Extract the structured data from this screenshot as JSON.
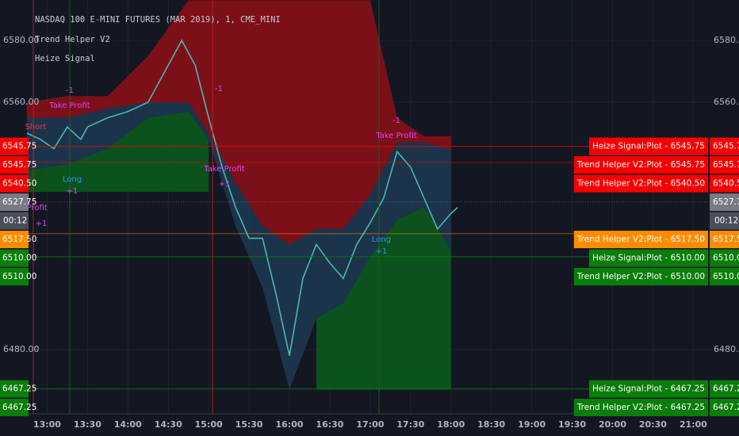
{
  "chart_data": {
    "type": "line",
    "title": "NASDAQ 100 E-MINI FUTURES (MAR 2019), 1, CME_MINI",
    "indicators": [
      "Trend Helper V2",
      "Heize Signal"
    ],
    "xlim": [
      "12:25",
      "21:11"
    ],
    "xticks": [
      "13:00",
      "13:30",
      "14:00",
      "14:30",
      "15:00",
      "15:30",
      "16:00",
      "16:30",
      "17:00",
      "17:30",
      "18:00",
      "18:30",
      "19:00",
      "19:30",
      "20:00",
      "20:30",
      "21:00"
    ],
    "ylim": [
      6459.7,
      6593.1
    ],
    "yticks": [
      {
        "value": 6580,
        "label": "6580.00"
      },
      {
        "value": 6560,
        "label": "6560.00"
      },
      {
        "value": 6480,
        "label": "6480.00"
      }
    ],
    "grid": true,
    "price": {
      "color": "#4db6ac",
      "x": [
        "12:45",
        "12:55",
        "13:05",
        "13:15",
        "13:25",
        "13:30",
        "13:45",
        "14:00",
        "14:15",
        "14:30",
        "14:40",
        "14:50",
        "15:00",
        "15:10",
        "15:20",
        "15:30",
        "15:40",
        "15:50",
        "16:00",
        "16:10",
        "16:20",
        "16:30",
        "16:40",
        "16:50",
        "17:00",
        "17:10",
        "17:20",
        "17:30",
        "17:40",
        "17:50",
        "18:00",
        "18:05"
      ],
      "values": [
        6550,
        6548,
        6545,
        6552,
        6548,
        6552,
        6555,
        6557,
        6560,
        6572,
        6580,
        6572,
        6555,
        6539,
        6526,
        6516,
        6516,
        6498,
        6478,
        6503,
        6514,
        6508,
        6503,
        6514,
        6521,
        6529,
        6544,
        6539,
        6529,
        6519,
        6524,
        6526
      ]
    },
    "bands": [
      {
        "color": "#8e0f18",
        "x": [
          "12:45",
          "13:15",
          "13:45",
          "14:15",
          "14:45",
          "15:00",
          "15:20",
          "15:40",
          "16:00",
          "16:20",
          "16:40",
          "17:00",
          "17:20",
          "17:40",
          "18:00"
        ],
        "high": [
          6560,
          6562,
          6562,
          6575,
          6593,
          6593,
          6593,
          6593,
          6593,
          6593,
          6593,
          6593,
          6555,
          6549,
          6549
        ],
        "low": [
          6555,
          6555,
          6558,
          6560,
          6560,
          6550,
          6534,
          6520,
          6514,
          6519,
          6519,
          6530,
          6547,
          6547,
          6545
        ]
      },
      {
        "color": "#1e3a52",
        "x": [
          "12:45",
          "13:15",
          "13:45",
          "14:15",
          "14:45",
          "15:00",
          "15:20",
          "15:40",
          "16:00",
          "16:20",
          "16:40",
          "17:00",
          "17:20",
          "17:40",
          "18:00"
        ],
        "high": [
          6555,
          6555,
          6558,
          6560,
          6560,
          6550,
          6534,
          6520,
          6514,
          6519,
          6519,
          6530,
          6547,
          6547,
          6545
        ],
        "low": [
          6538,
          6540,
          6545,
          6555,
          6557,
          6548,
          6520,
          6500,
          6467,
          6490,
          6495,
          6510,
          6522,
          6526,
          6512
        ]
      },
      {
        "color": "#0b5d1e",
        "x": [
          "12:45",
          "13:15",
          "13:45",
          "14:15",
          "14:45",
          "15:00",
          "15:20",
          "15:40",
          "16:00",
          "16:20",
          "16:40",
          "17:00",
          "17:20",
          "17:40",
          "18:00"
        ],
        "high": [
          6538,
          6540,
          6545,
          6555,
          6557,
          6548,
          null,
          null,
          null,
          6490,
          6495,
          6510,
          6522,
          6526,
          6512
        ],
        "low": [
          6531,
          6531,
          6531,
          6531,
          6531,
          6531,
          null,
          null,
          null,
          6467,
          6467,
          6467,
          6467,
          6467,
          6467
        ]
      }
    ],
    "tags": [
      {
        "text": "Heize Signal:Plot - 6545.75",
        "price": {
          "value": 6545.75,
          "label": "6545.75"
        },
        "color": "#f50000"
      },
      {
        "text": "Trend Helper V2:Plot - 6545.75",
        "price": {
          "value": 6545.75,
          "label": "6545.75"
        },
        "color": "#f50000"
      },
      {
        "text": "Trend Helper V2:Plot - 6540.50",
        "price": {
          "value": 6540.5,
          "label": "6540.50"
        },
        "color": "#f50000"
      },
      {
        "text": "Trend Helper V2:Plot - 6517.50",
        "price": {
          "value": 6517.5,
          "label": "6517.50"
        },
        "color": "#ff8c00"
      },
      {
        "text": "Heize Signal:Plot - 6510.00",
        "price": {
          "value": 6510,
          "label": "6510.00"
        },
        "color": "#0a7d0a"
      },
      {
        "text": "Trend Helper V2:Plot - 6510.00",
        "price": {
          "value": 6510,
          "label": "6510.00"
        },
        "color": "#0a7d0a"
      },
      {
        "text": "Heize Signal:Plot - 6467.25",
        "price": {
          "value": 6467.25,
          "label": "6467.25"
        },
        "color": "#0a7d0a"
      },
      {
        "text": "Trend Helper V2:Plot - 6467.25",
        "price": {
          "value": 6467.25,
          "label": "6467.25"
        },
        "color": "#0a7d0a"
      }
    ],
    "last_price": {
      "value": 6527.75,
      "label": "6527.75",
      "color": "#787b86"
    },
    "countdown": "00:12",
    "annotations": [
      {
        "text": "Short",
        "color": "#f23645"
      },
      {
        "text": "-1",
        "color": "#e040fb"
      },
      {
        "text": "Take Profit",
        "color": "#e040fb"
      },
      {
        "text": "Long",
        "color": "#2196f3"
      },
      {
        "text": "+1",
        "color": "#e040fb"
      },
      {
        "text": "Take Profit",
        "color": "#e040fb"
      },
      {
        "text": "+1",
        "color": "#e040fb"
      },
      {
        "text": "-1",
        "color": "#e040fb"
      },
      {
        "text": "Take Profit",
        "color": "#e040fb"
      },
      {
        "text": "+1",
        "color": "#e040fb"
      },
      {
        "text": "-1",
        "color": "#e040fb"
      },
      {
        "text": "Take Profit",
        "color": "#e040fb"
      },
      {
        "text": "Long",
        "color": "#2196f3"
      },
      {
        "text": "+1",
        "color": "#2196f3"
      }
    ]
  }
}
